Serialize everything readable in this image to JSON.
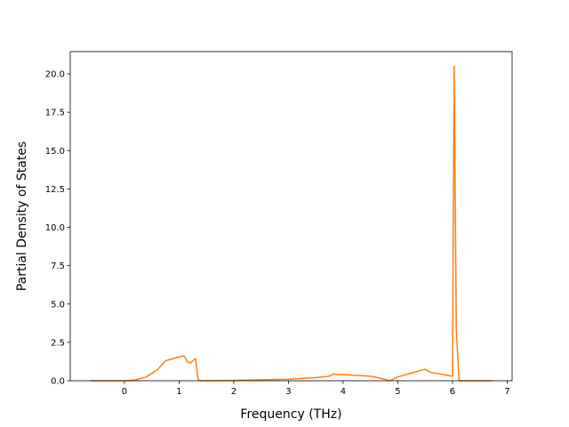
{
  "chart_data": {
    "type": "line",
    "x_label": "Frequency (THz)",
    "y_label": "Partial Density of States",
    "x": [
      -0.62,
      0,
      0.2,
      0.4,
      0.6,
      0.7,
      0.75,
      0.9,
      1.05,
      1.1,
      1.15,
      1.2,
      1.25,
      1.3,
      1.35,
      1.4,
      2,
      3,
      3.5,
      3.75,
      3.82,
      4,
      4.5,
      4.7,
      4.85,
      5,
      5.3,
      5.5,
      5.6,
      6.0,
      6.03,
      6.07,
      6.12,
      6.72
    ],
    "series": [
      {
        "color": "#ff7f0e",
        "values": [
          0,
          0,
          0.05,
          0.25,
          0.7,
          1.1,
          1.3,
          1.45,
          1.6,
          1.6,
          1.25,
          1.15,
          1.3,
          1.45,
          0.05,
          0,
          0.02,
          0.1,
          0.2,
          0.3,
          0.42,
          0.4,
          0.3,
          0.15,
          0,
          0.25,
          0.55,
          0.75,
          0.55,
          0.3,
          20.5,
          3.3,
          0,
          0
        ]
      }
    ],
    "xlim": [
      -0.99,
      7.09
    ],
    "ylim": [
      0,
      21.45
    ],
    "xticks": [
      0,
      1,
      2,
      3,
      4,
      5,
      6,
      7
    ],
    "yticks": [
      {
        "value": 0,
        "label": "0.0"
      },
      {
        "value": 2.5,
        "label": "2.5"
      },
      {
        "value": 5,
        "label": "5.0"
      },
      {
        "value": 7.5,
        "label": "7.5"
      },
      {
        "value": 10,
        "label": "10.0"
      },
      {
        "value": 12.5,
        "label": "12.5"
      },
      {
        "value": 15,
        "label": "15.0"
      },
      {
        "value": 17.5,
        "label": "17.5"
      },
      {
        "value": 20,
        "label": "20.0"
      }
    ]
  }
}
